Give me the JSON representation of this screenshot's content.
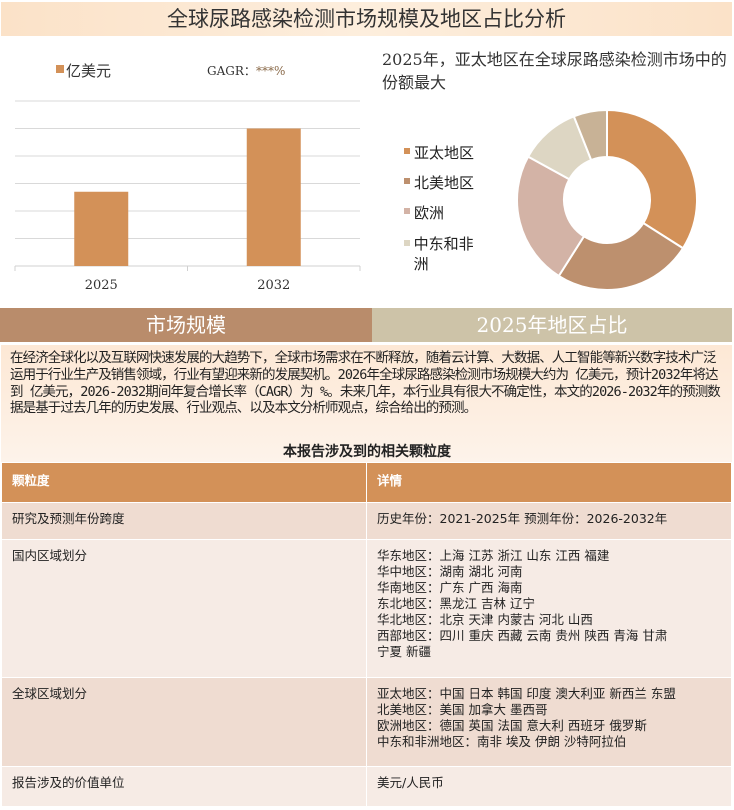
{
  "title": "全球尿路感染检测市场规模及地区占比分析",
  "bar_chart": {
    "type": "bar",
    "legend": "亿美元",
    "cagr_label": "GAGR：",
    "cagr_value": "***%",
    "categories": [
      "2025",
      "2032"
    ],
    "values": [
      2.7,
      5.0
    ],
    "ylim": [
      0,
      6
    ],
    "grid": true,
    "color": "#d39158"
  },
  "pie_chart": {
    "type": "pie",
    "title": "2025年，亚太地区在全球尿路感染检测市场中的份额最大",
    "legend": [
      {
        "name": "亚太地区",
        "color": "#d39158"
      },
      {
        "name": "北美地区",
        "color": "#bd906e"
      },
      {
        "name": "欧洲",
        "color": "#d3b3a6"
      },
      {
        "name": "中东和非洲",
        "color": "#ddd6c3"
      }
    ],
    "values": [
      34,
      25,
      24,
      11,
      6
    ],
    "colors": [
      "#d39158",
      "#bd906e",
      "#d3b3a6",
      "#ddd6c3",
      "#c8b296"
    ]
  },
  "sections": {
    "left": "市场规模",
    "right": "2025年地区占比"
  },
  "intro": "在经济全球化以及互联网快速发展的大趋势下，全球市场需求在不断释放，随着云计算、大数据、人工智能等新兴数字技术广泛运用于行业生产及销售领域，行业有望迎来新的发展契机。2026年全球尿路感染检测市场规模大约为 亿美元，预计2032年将达到 亿美元，2026-2032期间年复合增长率（CAGR）为 %。未来几年，本行业具有很大不确定性，本文的2026-2032年的预测数据是基于过去几年的历史发展、行业观点、以及本文分析师观点，综合给出的预测。",
  "table": {
    "title": "本报告涉及到的相关颗粒度",
    "headers": [
      "颗粒度",
      "详情"
    ],
    "rows": [
      {
        "label": "研究及预测年份跨度",
        "lines": [
          "历史年份：2021-2025年 预测年份：2026-2032年"
        ]
      },
      {
        "label": "国内区域划分",
        "lines": [
          "华东地区：上海  江苏  浙江  山东  江西  福建",
          "华中地区：湖南  湖北  河南",
          "华南地区：广东  广西  海南",
          "东北地区：黑龙江  吉林  辽宁",
          "华北地区：北京  天津  内蒙古  河北  山西",
          "西部地区：四川  重庆  西藏  云南  贵州  陕西  青海  甘肃",
          "宁夏  新疆"
        ]
      },
      {
        "label": "全球区域划分",
        "lines": [
          "亚太地区：中国  日本  韩国  印度  澳大利亚  新西兰  东盟",
          "北美地区：美国  加拿大  墨西哥",
          "欧洲地区：德国  英国  法国  意大利  西班牙  俄罗斯",
          "中东和非洲地区：南非  埃及  伊朗  沙特阿拉伯"
        ]
      },
      {
        "label": "报告涉及的价值单位",
        "lines": [
          "美元/人民币"
        ]
      }
    ]
  }
}
